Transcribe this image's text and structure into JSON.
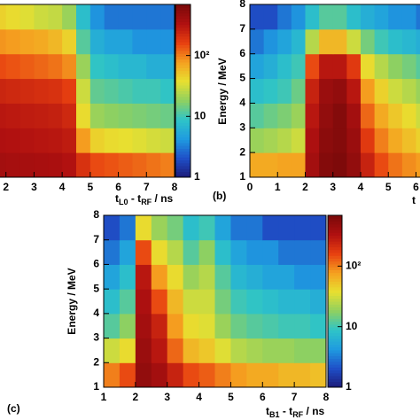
{
  "chart_data": [
    {
      "type": "heatmap",
      "log_color": true,
      "colormap": [
        "#1c1a78",
        "#1f4fc8",
        "#1f9be0",
        "#2ec4c8",
        "#8fd060",
        "#e8e030",
        "#f5a020",
        "#e84010",
        "#b01010",
        "#7a0a0a"
      ],
      "x_label_parts": [
        "t",
        "L0",
        " - t",
        "RF",
        " / ns"
      ],
      "xlim": [
        1,
        8
      ],
      "ylim": [
        1,
        8
      ],
      "xticks": [
        2,
        3,
        4,
        5,
        6,
        7,
        8
      ],
      "clim": [
        1,
        690
      ],
      "cticks": [
        1,
        10,
        {
          "value": 100,
          "label": "10²"
        }
      ],
      "xbins": [
        1,
        1.5,
        2,
        2.5,
        3,
        3.5,
        4,
        4.5,
        5,
        5.5,
        6,
        6.5,
        7,
        7.5,
        8
      ],
      "ybins": [
        1,
        2,
        3,
        4,
        5,
        6,
        7,
        8
      ],
      "z": [
        [
          400,
          400,
          380,
          380,
          370,
          360,
          330,
          200,
          150,
          140,
          130,
          120,
          110,
          100
        ],
        [
          350,
          340,
          330,
          320,
          310,
          300,
          280,
          80,
          45,
          40,
          38,
          35,
          32,
          30
        ],
        [
          300,
          300,
          290,
          280,
          270,
          260,
          230,
          40,
          20,
          18,
          17,
          16,
          15,
          14
        ],
        [
          250,
          240,
          230,
          220,
          210,
          200,
          170,
          30,
          13,
          12,
          11,
          10,
          10,
          9
        ],
        [
          160,
          150,
          140,
          130,
          120,
          110,
          90,
          20,
          9,
          8,
          7,
          7,
          6,
          6
        ],
        [
          90,
          85,
          80,
          75,
          70,
          60,
          45,
          12,
          6,
          5,
          5,
          4,
          4,
          4
        ],
        [
          50,
          45,
          40,
          35,
          30,
          28,
          20,
          8,
          4,
          3,
          3,
          3,
          3,
          3
        ]
      ]
    },
    {
      "type": "heatmap",
      "log_color": true,
      "panel_label": "(b)",
      "y_label": "Energy / MeV",
      "colormap": [
        "#1c1a78",
        "#1f4fc8",
        "#1f9be0",
        "#2ec4c8",
        "#8fd060",
        "#e8e030",
        "#f5a020",
        "#e84010",
        "#b01010",
        "#7a0a0a"
      ],
      "x_label_parts": [
        "t"
      ],
      "xlim": [
        0,
        8
      ],
      "ylim": [
        1,
        8
      ],
      "xticks": [
        0,
        1,
        2,
        3,
        4,
        5,
        6
      ],
      "yticks": [
        1,
        2,
        3,
        4,
        5,
        6,
        7,
        8
      ],
      "clim": [
        1,
        690
      ],
      "xbins": [
        0,
        0.5,
        1,
        1.5,
        2,
        2.5,
        3,
        3.5,
        4,
        4.5,
        5,
        5.5,
        6,
        6.5,
        7,
        7.5,
        8
      ],
      "ybins": [
        1,
        2,
        3,
        4,
        5,
        6,
        7,
        8
      ],
      "z": [
        [
          70,
          70,
          75,
          75,
          400,
          600,
          650,
          500,
          250,
          150,
          110,
          90,
          80,
          70,
          60,
          55
        ],
        [
          20,
          22,
          25,
          30,
          350,
          550,
          600,
          450,
          180,
          100,
          70,
          55,
          45,
          40,
          35,
          30
        ],
        [
          12,
          14,
          16,
          20,
          300,
          500,
          600,
          400,
          120,
          70,
          50,
          40,
          30,
          25,
          22,
          20
        ],
        [
          8,
          9,
          10,
          14,
          250,
          450,
          500,
          300,
          80,
          45,
          30,
          25,
          20,
          18,
          15,
          14
        ],
        [
          5,
          6,
          8,
          10,
          150,
          300,
          300,
          180,
          40,
          25,
          18,
          15,
          12,
          10,
          9,
          8
        ],
        [
          3,
          4,
          5,
          7,
          25,
          60,
          60,
          30,
          15,
          10,
          8,
          7,
          6,
          5,
          5,
          4
        ],
        [
          2,
          2,
          3,
          4,
          8,
          12,
          12,
          8,
          6,
          5,
          4,
          4,
          3,
          3,
          3,
          3
        ]
      ]
    },
    {
      "type": "heatmap",
      "log_color": true,
      "panel_label": "(c)",
      "y_label": "Energy / MeV",
      "colormap": [
        "#1c1a78",
        "#1f4fc8",
        "#1f9be0",
        "#2ec4c8",
        "#8fd060",
        "#e8e030",
        "#f5a020",
        "#e84010",
        "#b01010",
        "#7a0a0a"
      ],
      "x_label_parts": [
        "t",
        "B1",
        " - t",
        "RF",
        " / ns"
      ],
      "xlim": [
        1,
        8
      ],
      "ylim": [
        1,
        8
      ],
      "xticks": [
        1,
        2,
        3,
        4,
        5,
        6,
        7,
        8
      ],
      "yticks": [
        1,
        2,
        3,
        4,
        5,
        6,
        7,
        8
      ],
      "clim": [
        1,
        690
      ],
      "cticks": [
        1,
        10,
        {
          "value": 100,
          "label": "10²"
        }
      ],
      "xbins": [
        1,
        1.5,
        2,
        2.5,
        3,
        3.5,
        4,
        4.5,
        5,
        5.5,
        6,
        6.5,
        7,
        7.5,
        8
      ],
      "ybins": [
        1,
        2,
        3,
        4,
        5,
        6,
        7,
        8
      ],
      "z": [
        [
          100,
          150,
          500,
          400,
          250,
          150,
          130,
          100,
          80,
          70,
          70,
          60,
          60,
          55
        ],
        [
          30,
          40,
          450,
          300,
          120,
          60,
          50,
          35,
          25,
          22,
          20,
          20,
          18,
          18
        ],
        [
          12,
          18,
          400,
          250,
          80,
          40,
          35,
          20,
          14,
          12,
          11,
          10,
          10,
          9
        ],
        [
          8,
          12,
          350,
          150,
          60,
          30,
          30,
          15,
          10,
          9,
          8,
          7,
          7,
          6
        ],
        [
          5,
          8,
          300,
          80,
          40,
          20,
          25,
          12,
          7,
          6,
          5,
          5,
          4,
          4
        ],
        [
          3,
          5,
          150,
          40,
          25,
          12,
          18,
          8,
          5,
          4,
          4,
          3,
          3,
          3
        ],
        [
          2,
          3,
          40,
          20,
          15,
          8,
          10,
          5,
          3,
          3,
          2,
          2,
          2,
          2
        ]
      ]
    }
  ]
}
